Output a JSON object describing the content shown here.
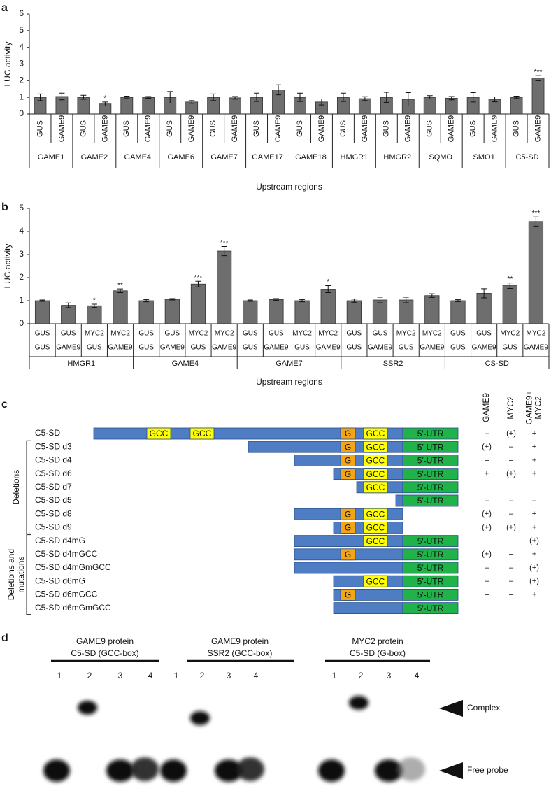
{
  "chart_data": [
    {
      "type": "bar",
      "label": "a",
      "ylabel": "LUC activity",
      "xlabel": "Upstream regions",
      "ylim": [
        0,
        6
      ],
      "yticks": [
        0,
        1,
        2,
        3,
        4,
        5,
        6
      ],
      "categories": [
        "GUS",
        "GAME9",
        "GUS",
        "GAME9",
        "GUS",
        "GAME9",
        "GUS",
        "GAME9",
        "GUS",
        "GAME9",
        "GUS",
        "GAME9",
        "GUS",
        "GAME9",
        "GUS",
        "GAME9",
        "GUS",
        "GAME9",
        "GUS",
        "GAME9",
        "GUS",
        "GAME9",
        "GUS",
        "GAME9"
      ],
      "groups": [
        "GAME1",
        "GAME2",
        "GAME4",
        "GAME6",
        "GAME7",
        "GAME17",
        "GAME18",
        "HMGR1",
        "HMGR2",
        "SQMO",
        "SMO1",
        "C5-SD"
      ],
      "series": [
        {
          "color": "#6e6e6e",
          "values": [
            1.0,
            1.05,
            1.0,
            0.6,
            1.0,
            1.0,
            1.0,
            0.72,
            1.0,
            0.97,
            1.0,
            1.45,
            1.0,
            0.72,
            1.0,
            0.92,
            1.0,
            0.88,
            1.0,
            0.95,
            1.0,
            0.88,
            1.0,
            2.15
          ],
          "errors": [
            0.2,
            0.2,
            0.12,
            0.12,
            0.07,
            0.05,
            0.35,
            0.08,
            0.2,
            0.08,
            0.25,
            0.3,
            0.25,
            0.18,
            0.25,
            0.12,
            0.3,
            0.4,
            0.1,
            0.1,
            0.28,
            0.15,
            0.07,
            0.15
          ],
          "significance": [
            null,
            null,
            null,
            "*",
            null,
            null,
            null,
            null,
            null,
            null,
            null,
            null,
            null,
            null,
            null,
            null,
            null,
            null,
            null,
            null,
            null,
            null,
            null,
            "***"
          ]
        }
      ]
    },
    {
      "type": "bar",
      "label": "b",
      "ylabel": "LUC activity",
      "xlabel": "Upstream regions",
      "ylim": [
        0,
        5
      ],
      "yticks": [
        0,
        1,
        2,
        3,
        4,
        5
      ],
      "categories": [
        "GUS",
        "GUS",
        "MYC2",
        "MYC2",
        "GUS",
        "GUS",
        "MYC2",
        "MYC2",
        "GUS",
        "GUS",
        "MYC2",
        "MYC2",
        "GUS",
        "GUS",
        "MYC2",
        "MYC2",
        "GUS",
        "GUS",
        "MYC2",
        "MYC2"
      ],
      "categories_row2": [
        "GUS",
        "GAME9",
        "GUS",
        "GAME9",
        "GUS",
        "GAME9",
        "GUS",
        "GAME9",
        "GUS",
        "GAME9",
        "GUS",
        "GAME9",
        "GUS",
        "GAME9",
        "GUS",
        "GAME9",
        "GUS",
        "GAME9",
        "GUS",
        "GAME9"
      ],
      "groups": [
        "HMGR1",
        "GAME4",
        "GAME7",
        "SSR2",
        "CS-SD"
      ],
      "series": [
        {
          "color": "#6e6e6e",
          "values": [
            1.0,
            0.8,
            0.78,
            1.43,
            1.0,
            1.06,
            1.72,
            3.15,
            1.0,
            1.05,
            1.0,
            1.5,
            1.0,
            1.03,
            1.03,
            1.22,
            1.0,
            1.32,
            1.65,
            4.43
          ],
          "errors": [
            0.03,
            0.1,
            0.07,
            0.08,
            0.05,
            0.03,
            0.12,
            0.2,
            0.03,
            0.04,
            0.05,
            0.15,
            0.07,
            0.12,
            0.12,
            0.08,
            0.04,
            0.2,
            0.12,
            0.2
          ],
          "significance": [
            null,
            null,
            "*",
            "**",
            null,
            null,
            "***",
            "***",
            null,
            null,
            null,
            "*",
            null,
            null,
            null,
            null,
            null,
            null,
            "**",
            "***"
          ]
        }
      ]
    }
  ],
  "diagram": {
    "label": "c",
    "columns": [
      [
        "GAME9"
      ],
      [
        "MYC2"
      ],
      [
        "GAME9+",
        "MYC2"
      ]
    ],
    "brackets": [
      "Deletions",
      [
        "Deletions and",
        "mutations"
      ]
    ],
    "rows": [
      {
        "name": "C5-SD",
        "boxes": [
          "GCC",
          "GCC",
          "G",
          "GCC",
          "5′-UTR"
        ],
        "results": [
          "–",
          "(+)",
          "+"
        ]
      },
      {
        "name": "C5-SD d3",
        "boxes": [
          "G",
          "GCC",
          "5′-UTR"
        ],
        "results": [
          "(+)",
          "–",
          "+"
        ]
      },
      {
        "name": "C5-SD d4",
        "boxes": [
          "G",
          "GCC",
          "5′-UTR"
        ],
        "results": [
          "–",
          "–",
          "+"
        ]
      },
      {
        "name": "C5-SD d6",
        "boxes": [
          "G",
          "GCC",
          "5′-UTR"
        ],
        "results": [
          "+",
          "(+)",
          "+"
        ]
      },
      {
        "name": "C5-SD d7",
        "boxes": [
          "GCC",
          "5′-UTR"
        ],
        "results": [
          "–",
          "–",
          "–"
        ]
      },
      {
        "name": "C5-SD d5",
        "boxes": [
          "5′-UTR"
        ],
        "results": [
          "–",
          "–",
          "–"
        ]
      },
      {
        "name": "C5-SD d8",
        "boxes": [
          "G",
          "GCC"
        ],
        "results": [
          "(+)",
          "–",
          "+"
        ]
      },
      {
        "name": "C5-SD d9",
        "boxes": [
          "G",
          "GCC"
        ],
        "results": [
          "(+)",
          "(+)",
          "+"
        ]
      },
      {
        "name": "C5-SD d4mG",
        "boxes": [
          "GCC",
          "5′-UTR"
        ],
        "results": [
          "–",
          "–",
          "(+)"
        ]
      },
      {
        "name": "C5-SD d4mGCC",
        "boxes": [
          "G",
          "5′-UTR"
        ],
        "results": [
          "(+)",
          "–",
          "+"
        ]
      },
      {
        "name": "C5-SD d4mGmGCC",
        "boxes": [
          "5′-UTR"
        ],
        "results": [
          "–",
          "–",
          "(+)"
        ]
      },
      {
        "name": "C5-SD d6mG",
        "boxes": [
          "GCC",
          "5′-UTR"
        ],
        "results": [
          "–",
          "–",
          "(+)"
        ]
      },
      {
        "name": "C5-SD d6mGCC",
        "boxes": [
          "G",
          "5′-UTR"
        ],
        "results": [
          "–",
          "–",
          "+"
        ]
      },
      {
        "name": "C5-SD d6mGmGCC",
        "boxes": [
          "5′-UTR"
        ],
        "results": [
          "–",
          "–",
          "–"
        ]
      }
    ]
  },
  "gel": {
    "label": "d",
    "groups": [
      {
        "title": [
          "GAME9 protein",
          "C5-SD (GCC-box)"
        ],
        "lanes": [
          "1",
          "2",
          "3",
          "4"
        ]
      },
      {
        "title": [
          "GAME9 protein",
          "SSR2 (GCC-box)"
        ],
        "lanes": [
          "1",
          "2",
          "3",
          "4"
        ]
      },
      {
        "title": [
          "MYC2 protein",
          "C5-SD (G-box)"
        ],
        "lanes": [
          "1",
          "2",
          "3",
          "4"
        ]
      }
    ],
    "markers": [
      "Complex",
      "Free probe"
    ]
  }
}
